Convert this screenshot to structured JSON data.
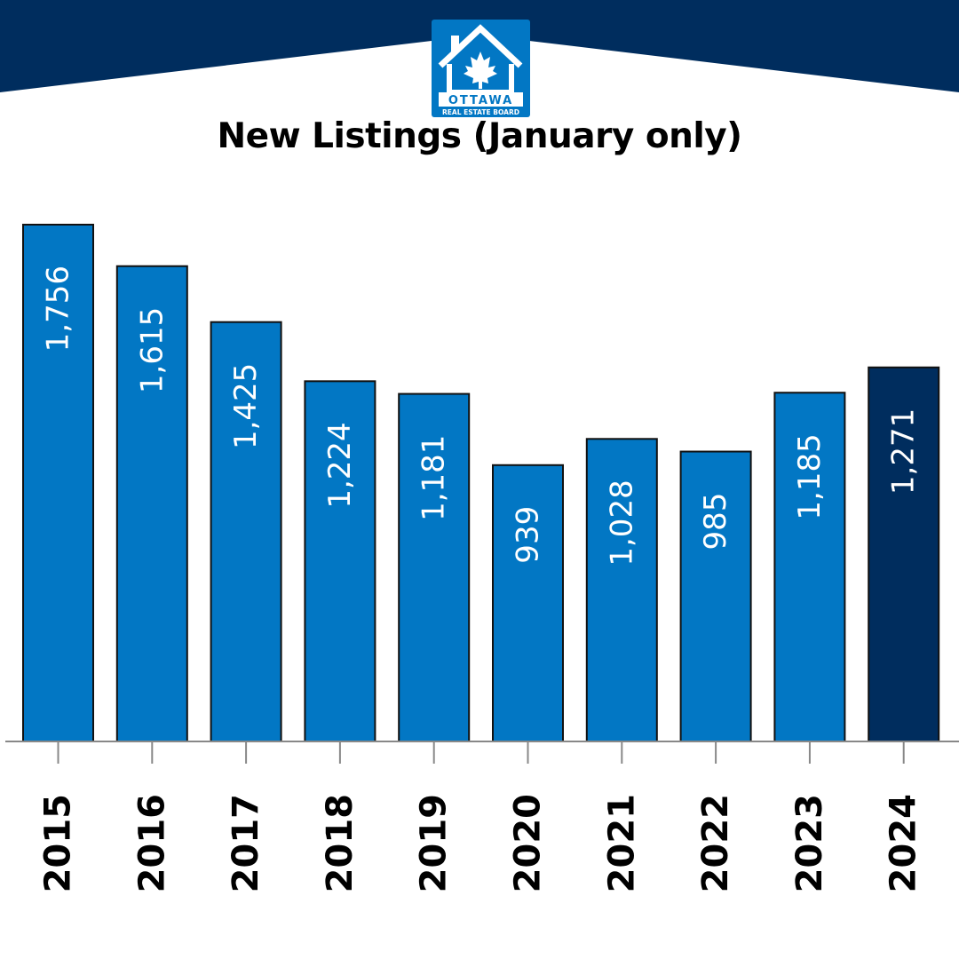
{
  "title": "New Listings (January only)",
  "logo": {
    "icon": "house-maple-leaf-icon",
    "name": "OTTAWA",
    "subtitle": "REAL ESTATE BOARD"
  },
  "colors": {
    "band": "#002d5e",
    "bar": "#0277c4",
    "bar_highlight": "#002d5e",
    "bar_text": "#ffffff",
    "axis": "#888888"
  },
  "chart_data": {
    "type": "bar",
    "title": "New Listings (January only)",
    "categories": [
      "2015",
      "2016",
      "2017",
      "2018",
      "2019",
      "2020",
      "2021",
      "2022",
      "2023",
      "2024"
    ],
    "values": [
      1756,
      1615,
      1425,
      1224,
      1181,
      939,
      1028,
      985,
      1185,
      1271
    ],
    "value_labels": [
      "1,756",
      "1,615",
      "1,425",
      "1,224",
      "1,181",
      "939",
      "1,028",
      "985",
      "1,185",
      "1,271"
    ],
    "highlight_category": "2024",
    "ylim": [
      0,
      1756
    ],
    "grid": false,
    "legend": "none"
  }
}
